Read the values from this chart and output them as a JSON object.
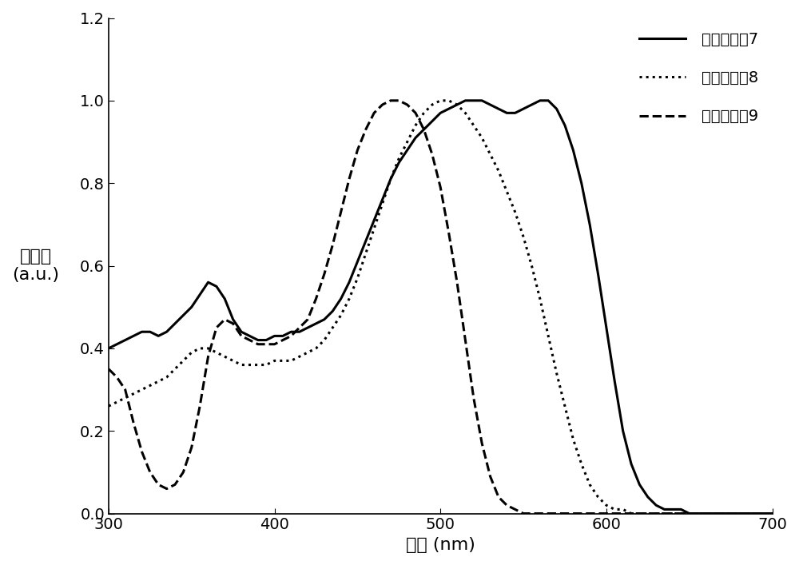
{
  "title": "",
  "xlabel": "波长 (nm)",
  "xlim": [
    300,
    700
  ],
  "ylim": [
    0,
    1.2
  ],
  "xticks": [
    300,
    400,
    500,
    600,
    700
  ],
  "yticks": [
    0.0,
    0.2,
    0.4,
    0.6,
    0.8,
    1.0,
    1.2
  ],
  "legend_labels": [
    "共轭聚合物7",
    "共轭聚合物8",
    "共轭聚合物9"
  ],
  "line_color": "#000000",
  "background_color": "#ffffff",
  "curve7_x": [
    300,
    305,
    310,
    315,
    320,
    325,
    330,
    335,
    340,
    345,
    350,
    355,
    360,
    365,
    370,
    375,
    380,
    385,
    390,
    395,
    400,
    405,
    410,
    415,
    420,
    425,
    430,
    435,
    440,
    445,
    450,
    455,
    460,
    465,
    470,
    475,
    480,
    485,
    490,
    495,
    500,
    505,
    510,
    515,
    520,
    525,
    530,
    535,
    540,
    545,
    550,
    555,
    560,
    565,
    570,
    575,
    580,
    585,
    590,
    595,
    600,
    605,
    610,
    615,
    620,
    625,
    630,
    635,
    640,
    645,
    650,
    655,
    660,
    665,
    670,
    675,
    680,
    685,
    690,
    695,
    700
  ],
  "curve7_y": [
    0.4,
    0.41,
    0.42,
    0.43,
    0.44,
    0.44,
    0.43,
    0.44,
    0.46,
    0.48,
    0.5,
    0.53,
    0.56,
    0.55,
    0.52,
    0.47,
    0.44,
    0.43,
    0.42,
    0.42,
    0.43,
    0.43,
    0.44,
    0.44,
    0.45,
    0.46,
    0.47,
    0.49,
    0.52,
    0.56,
    0.61,
    0.66,
    0.71,
    0.76,
    0.81,
    0.85,
    0.88,
    0.91,
    0.93,
    0.95,
    0.97,
    0.98,
    0.99,
    1.0,
    1.0,
    1.0,
    0.99,
    0.98,
    0.97,
    0.97,
    0.98,
    0.99,
    1.0,
    1.0,
    0.98,
    0.94,
    0.88,
    0.8,
    0.7,
    0.58,
    0.45,
    0.32,
    0.2,
    0.12,
    0.07,
    0.04,
    0.02,
    0.01,
    0.01,
    0.01,
    0.0,
    0.0,
    0.0,
    0.0,
    0.0,
    0.0,
    0.0,
    0.0,
    0.0,
    0.0,
    0.0
  ],
  "curve8_x": [
    300,
    305,
    310,
    315,
    320,
    325,
    330,
    335,
    340,
    345,
    350,
    355,
    360,
    365,
    370,
    375,
    380,
    385,
    390,
    395,
    400,
    405,
    410,
    415,
    420,
    425,
    430,
    435,
    440,
    445,
    450,
    455,
    460,
    465,
    470,
    475,
    480,
    485,
    490,
    495,
    500,
    505,
    510,
    515,
    520,
    525,
    530,
    535,
    540,
    545,
    550,
    555,
    560,
    565,
    570,
    575,
    580,
    585,
    590,
    595,
    600,
    605,
    610,
    615,
    620,
    625,
    630,
    635,
    640,
    645,
    650,
    655,
    660,
    665,
    670,
    675,
    680,
    685,
    690,
    695,
    700
  ],
  "curve8_y": [
    0.26,
    0.27,
    0.28,
    0.29,
    0.3,
    0.31,
    0.32,
    0.33,
    0.35,
    0.37,
    0.39,
    0.4,
    0.4,
    0.39,
    0.38,
    0.37,
    0.36,
    0.36,
    0.36,
    0.36,
    0.37,
    0.37,
    0.37,
    0.38,
    0.39,
    0.4,
    0.42,
    0.45,
    0.48,
    0.52,
    0.57,
    0.63,
    0.69,
    0.75,
    0.81,
    0.86,
    0.9,
    0.94,
    0.97,
    0.99,
    1.0,
    1.0,
    0.99,
    0.97,
    0.94,
    0.91,
    0.87,
    0.83,
    0.78,
    0.73,
    0.67,
    0.6,
    0.52,
    0.43,
    0.34,
    0.26,
    0.18,
    0.12,
    0.07,
    0.04,
    0.02,
    0.01,
    0.01,
    0.0,
    0.0,
    0.0,
    0.0,
    0.0,
    0.0,
    0.0,
    0.0,
    0.0,
    0.0,
    0.0,
    0.0,
    0.0,
    0.0,
    0.0,
    0.0,
    0.0,
    0.0
  ],
  "curve9_x": [
    300,
    305,
    310,
    315,
    320,
    325,
    330,
    335,
    340,
    345,
    350,
    355,
    360,
    365,
    370,
    375,
    380,
    385,
    390,
    395,
    400,
    405,
    410,
    415,
    420,
    425,
    430,
    435,
    440,
    445,
    450,
    455,
    460,
    465,
    470,
    475,
    480,
    485,
    490,
    495,
    500,
    505,
    510,
    515,
    520,
    525,
    530,
    535,
    540,
    545,
    550,
    555,
    560,
    565,
    570,
    575,
    580,
    585,
    590,
    595,
    600,
    605,
    610,
    615,
    620,
    625,
    630,
    635,
    640,
    645,
    650,
    655,
    660,
    665,
    670,
    675,
    680,
    685,
    690,
    695,
    700
  ],
  "curve9_y": [
    0.35,
    0.33,
    0.3,
    0.22,
    0.15,
    0.1,
    0.07,
    0.06,
    0.07,
    0.1,
    0.16,
    0.26,
    0.38,
    0.45,
    0.47,
    0.46,
    0.43,
    0.42,
    0.41,
    0.41,
    0.41,
    0.42,
    0.43,
    0.45,
    0.47,
    0.52,
    0.58,
    0.65,
    0.73,
    0.81,
    0.88,
    0.93,
    0.97,
    0.99,
    1.0,
    1.0,
    0.99,
    0.97,
    0.93,
    0.87,
    0.79,
    0.68,
    0.56,
    0.42,
    0.28,
    0.17,
    0.09,
    0.04,
    0.02,
    0.01,
    0.0,
    0.0,
    0.0,
    0.0,
    0.0,
    0.0,
    0.0,
    0.0,
    0.0,
    0.0,
    0.0,
    0.0,
    0.0,
    0.0,
    0.0,
    0.0,
    0.0,
    0.0,
    0.0,
    0.0,
    0.0,
    0.0,
    0.0,
    0.0,
    0.0,
    0.0,
    0.0,
    0.0,
    0.0,
    0.0,
    0.0
  ]
}
